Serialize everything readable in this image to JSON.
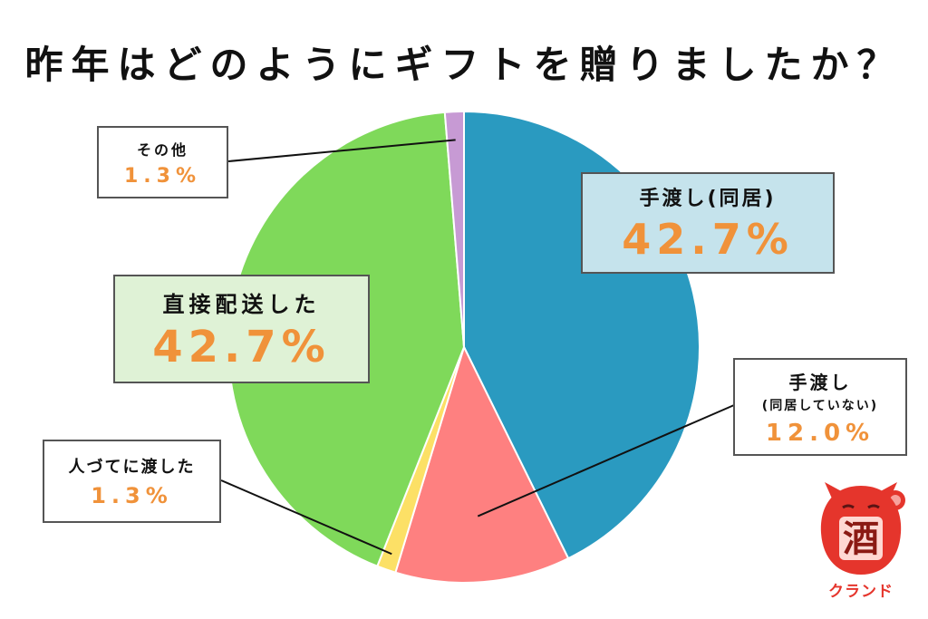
{
  "title": "昨年はどのようにギフトを贈りましたか？",
  "chart_data": {
    "type": "pie",
    "title": "昨年はどのようにギフトを贈りましたか？",
    "start_angle_deg": 0,
    "direction": "clockwise",
    "slices": [
      {
        "key": "hand_cohab",
        "label": "手渡し(同居)",
        "value": 42.7,
        "value_label": "42.7%",
        "color": "#2a9ac0"
      },
      {
        "key": "hand_separate",
        "label": "手渡し",
        "sub_label": "(同居していない)",
        "value": 12.0,
        "value_label": "12.0%",
        "color": "#fe8080"
      },
      {
        "key": "via_person",
        "label": "人づてに渡した",
        "value": 1.3,
        "value_label": "1.3%",
        "color": "#fce066"
      },
      {
        "key": "direct",
        "label": "直接配送した",
        "value": 42.7,
        "value_label": "42.7%",
        "color": "#7fd95a"
      },
      {
        "key": "other",
        "label": "その他",
        "value": 1.3,
        "value_label": "1.3%",
        "color": "#c79ad4"
      }
    ]
  },
  "logo": {
    "icon": "maneki-neko-sake-icon",
    "glyph": "酒",
    "text": "クランド",
    "color": "#e5352c"
  }
}
